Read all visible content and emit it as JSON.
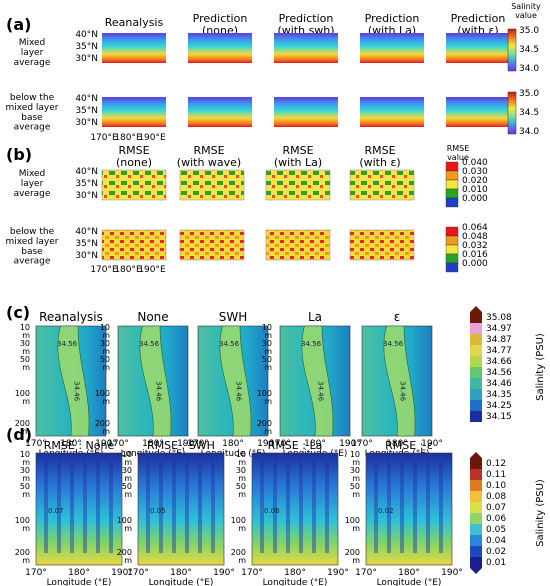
{
  "panels": {
    "a": {
      "label": "(a)",
      "columns": [
        "Reanalysis",
        "Prediction\n(none)",
        "Prediction\n(with swh)",
        "Prediction\n(with La)",
        "Prediction\n(with ε)"
      ],
      "rows": [
        "Mixed\nlayer\naverage",
        "below the\nmixed layer\nbase\naverage"
      ],
      "lat_ticks": [
        "40°N",
        "35°N",
        "30°N"
      ],
      "lon_ticks": [
        "170°E",
        "180°E",
        "190°E"
      ],
      "colorbar_title": "Salinity\nvalue",
      "colorbar_ticks": [
        "35.0",
        "34.5",
        "34.0"
      ]
    },
    "b": {
      "label": "(b)",
      "columns": [
        "RMSE\n(none)",
        "RMSE\n(with wave)",
        "RMSE\n(with La)",
        "RMSE\n(with ε)"
      ],
      "rows": [
        "Mixed\nlayer\naverage",
        "below the\nmixed layer\nbase\naverage"
      ],
      "lat_ticks": [
        "40°N",
        "35°N",
        "30°N"
      ],
      "lon_ticks": [
        "170°E",
        "180°E",
        "190°E"
      ],
      "colorbar_title": "RMSE\nvalue",
      "colorbar_ticks_top": [
        "0.040",
        "0.030",
        "0.020",
        "0.010",
        "0.000"
      ],
      "colorbar_ticks_bottom": [
        "0.064",
        "0.048",
        "0.032",
        "0.016",
        "0.000"
      ],
      "colorbar_colors": [
        "#e8161b",
        "#f39a1b",
        "#f5e63d",
        "#27a328",
        "#1f3fc7"
      ]
    },
    "c": {
      "label": "(c)",
      "columns": [
        "Reanalysis",
        "None",
        "SWH",
        "La",
        "ε"
      ],
      "depth_ticks": [
        "10\nm",
        "30\nm",
        "50\nm",
        "100\nm",
        "200\nm"
      ],
      "lon_ticks": [
        "170°",
        "180°",
        "190°"
      ],
      "xlabel": "Longitude (°E)",
      "colorbar_label": "Salinity (PSU)",
      "colorbar_ticks": [
        "35.08",
        "34.97",
        "34.87",
        "34.77",
        "34.66",
        "34.56",
        "34.46",
        "34.35",
        "34.25",
        "34.15"
      ],
      "contour_labels": [
        "34.56",
        "34.56",
        "34.46"
      ]
    },
    "d": {
      "label": "(d)",
      "columns": [
        "RMSE : None",
        "RMSE : SWH",
        "RMSE : La",
        "RMSE : ε"
      ],
      "depth_ticks": [
        "10\nm",
        "30\nm",
        "50\nm",
        "100\nm",
        "200\nm"
      ],
      "lon_ticks": [
        "170°",
        "180°",
        "190°"
      ],
      "xlabel": "Longitude (°E)",
      "colorbar_label": "Salinity (PSU)",
      "colorbar_ticks": [
        "0.12",
        "0.11",
        "0.10",
        "0.08",
        "0.07",
        "0.06",
        "0.05",
        "0.04",
        "0.02",
        "0.01"
      ],
      "contour_labels": [
        "0.07",
        "0.05",
        "0.06",
        "0.02"
      ]
    }
  },
  "chart_data": [
    {
      "type": "heatmap",
      "panel": "a",
      "description": "Mixed layer / below mixed layer salinity maps",
      "x_range": [
        "170°E",
        "190°E"
      ],
      "y_range": [
        "30°N",
        "40°N"
      ],
      "vmin": 34.0,
      "vmax": 35.0
    },
    {
      "type": "heatmap",
      "panel": "b",
      "description": "RMSE maps",
      "vmin": 0.0,
      "vmax_top": 0.04,
      "vmax_bottom": 0.064
    },
    {
      "type": "heatmap",
      "panel": "c",
      "description": "Depth–longitude salinity sections",
      "vmin": 34.15,
      "vmax": 35.08
    },
    {
      "type": "heatmap",
      "panel": "d",
      "description": "Depth–longitude RMSE sections",
      "vmin": 0.01,
      "vmax": 0.12
    }
  ]
}
